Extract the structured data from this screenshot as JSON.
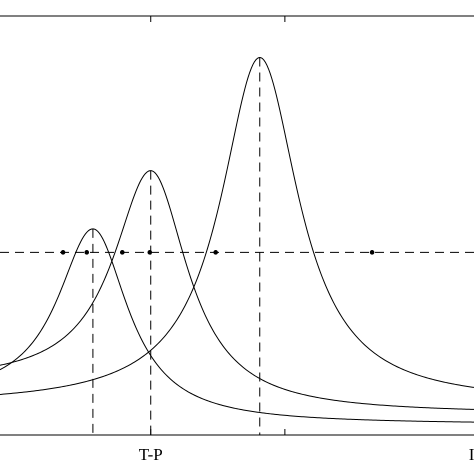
{
  "chart_data": {
    "type": "line",
    "title": "",
    "xlabel": "",
    "ylabel": "",
    "xlim": [
      0,
      1
    ],
    "ylim": [
      0,
      1
    ],
    "grid": false,
    "x_tick_labels": [
      {
        "x": 0.318,
        "label": "T-P"
      },
      {
        "x": 0.995,
        "label": "I"
      }
    ],
    "x_tick_marks": [
      0.318,
      0.601
    ],
    "series": [
      {
        "peak_x": 0.196,
        "peak_y": 0.492,
        "width": 0.09,
        "base_left": 0.085,
        "base_right": 0.025
      },
      {
        "peak_x": 0.318,
        "peak_y": 0.631,
        "width": 0.095,
        "base_left": 0.125,
        "base_right": 0.05
      },
      {
        "peak_x": 0.548,
        "peak_y": 0.901,
        "width": 0.1,
        "base_left": 0.07,
        "base_right": 0.075
      }
    ],
    "threshold_y": 0.436,
    "vertical_guides": [
      0.196,
      0.318,
      0.548
    ],
    "intersections": [
      {
        "x": 0.133,
        "y": 0.436
      },
      {
        "x": 0.183,
        "y": 0.436
      },
      {
        "x": 0.258,
        "y": 0.436
      },
      {
        "x": 0.316,
        "y": 0.436
      },
      {
        "x": 0.455,
        "y": 0.436
      },
      {
        "x": 0.785,
        "y": 0.436
      }
    ],
    "colors": {
      "ink": "#000000",
      "background": "#ffffff"
    }
  }
}
